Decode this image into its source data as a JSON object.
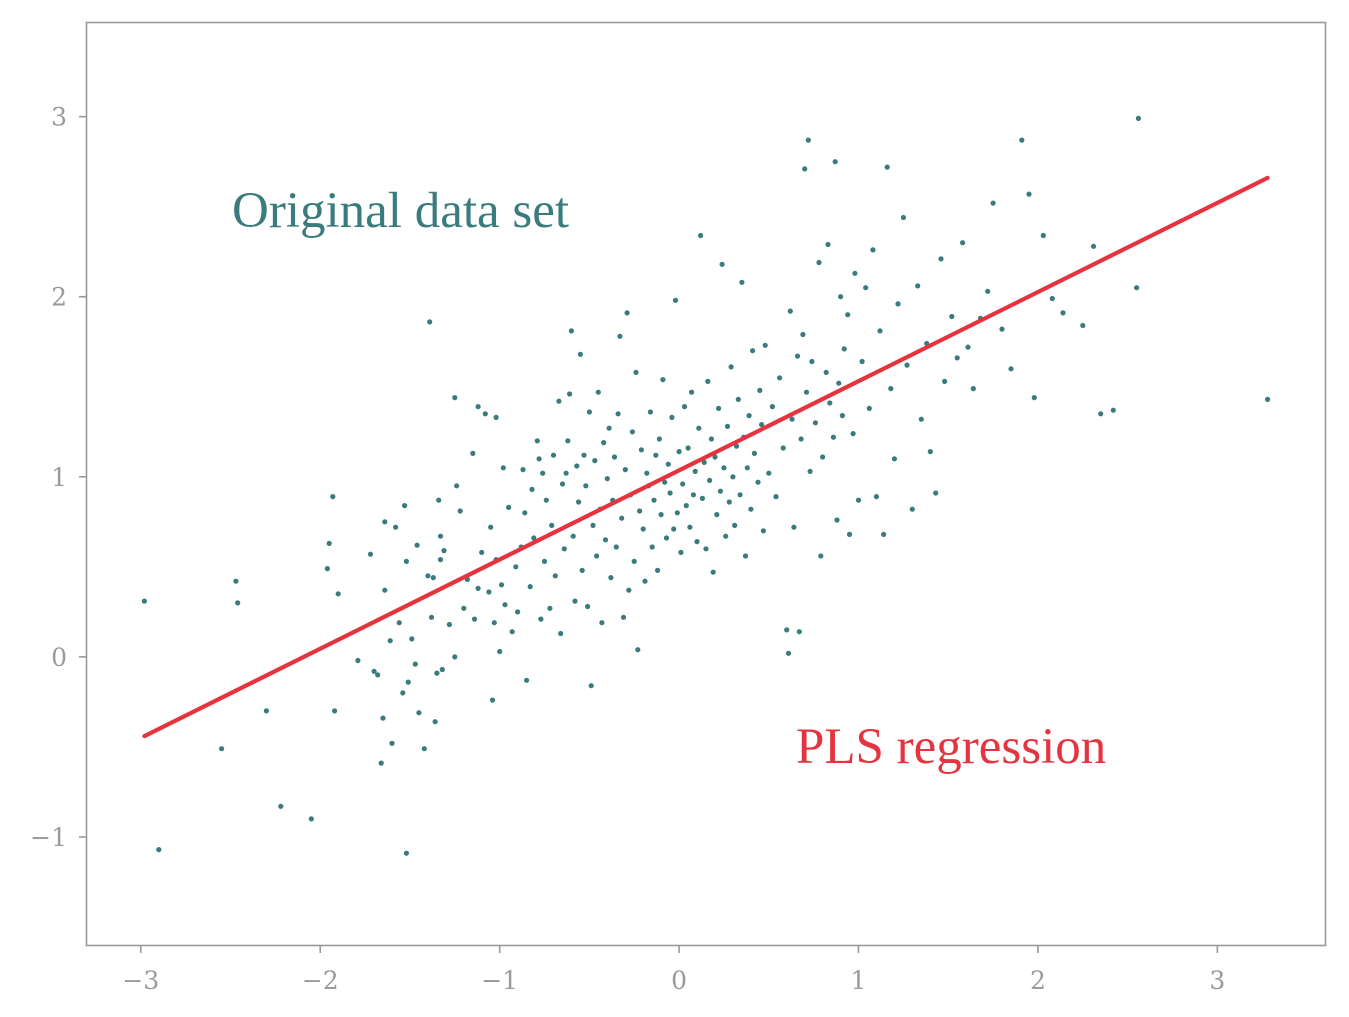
{
  "chart_data": {
    "type": "scatter",
    "title": "",
    "xlabel": "",
    "ylabel": "",
    "xlim": [
      -3.3,
      3.6
    ],
    "ylim": [
      -1.6,
      3.52
    ],
    "x_ticks": [
      -3,
      -2,
      -1,
      0,
      1,
      2,
      3
    ],
    "x_tick_labels": [
      "−3",
      "−2",
      "−1",
      "0",
      "1",
      "2",
      "3"
    ],
    "y_ticks": [
      -1,
      0,
      1,
      2,
      3
    ],
    "y_tick_labels": [
      "−1",
      "0",
      "1",
      "2",
      "3"
    ],
    "grid": false,
    "series": [
      {
        "kind": "scatter",
        "color": "#3a7b7d",
        "points": [
          [
            -2.98,
            0.31
          ],
          [
            -2.9,
            -1.07
          ],
          [
            -2.55,
            -0.51
          ],
          [
            -2.47,
            0.42
          ],
          [
            -2.46,
            0.3
          ],
          [
            -2.3,
            -0.3
          ],
          [
            -2.22,
            -0.83
          ],
          [
            -2.05,
            -0.9
          ],
          [
            -1.96,
            0.49
          ],
          [
            -1.95,
            0.63
          ],
          [
            -1.93,
            0.89
          ],
          [
            -1.92,
            -0.3
          ],
          [
            -1.9,
            0.35
          ],
          [
            -1.79,
            -0.02
          ],
          [
            -1.72,
            0.57
          ],
          [
            -1.7,
            -0.08
          ],
          [
            -1.68,
            -0.1
          ],
          [
            -1.66,
            -0.59
          ],
          [
            -1.65,
            -0.34
          ],
          [
            -1.64,
            0.75
          ],
          [
            -1.64,
            0.37
          ],
          [
            -1.61,
            0.09
          ],
          [
            -1.6,
            -0.48
          ],
          [
            -1.58,
            0.72
          ],
          [
            -1.56,
            0.19
          ],
          [
            -1.54,
            -0.2
          ],
          [
            -1.53,
            0.84
          ],
          [
            -1.52,
            -1.09
          ],
          [
            -1.52,
            0.53
          ],
          [
            -1.51,
            -0.14
          ],
          [
            -1.49,
            0.1
          ],
          [
            -1.47,
            -0.04
          ],
          [
            -1.46,
            0.62
          ],
          [
            -1.45,
            -0.31
          ],
          [
            -1.42,
            -0.51
          ],
          [
            -1.4,
            0.45
          ],
          [
            -1.39,
            1.86
          ],
          [
            -1.38,
            0.22
          ],
          [
            -1.37,
            0.44
          ],
          [
            -1.36,
            -0.36
          ],
          [
            -1.35,
            -0.09
          ],
          [
            -1.34,
            0.87
          ],
          [
            -1.33,
            0.67
          ],
          [
            -1.33,
            0.54
          ],
          [
            -1.32,
            -0.07
          ],
          [
            -1.31,
            0.59
          ],
          [
            -1.28,
            0.18
          ],
          [
            -1.25,
            0.0
          ],
          [
            -1.25,
            1.44
          ],
          [
            -1.24,
            0.95
          ],
          [
            -1.22,
            0.81
          ],
          [
            -1.2,
            0.27
          ],
          [
            -1.18,
            0.43
          ],
          [
            -1.15,
            1.13
          ],
          [
            -1.14,
            0.21
          ],
          [
            -1.12,
            1.39
          ],
          [
            -1.12,
            0.38
          ],
          [
            -1.1,
            0.58
          ],
          [
            -1.08,
            1.35
          ],
          [
            -1.06,
            0.36
          ],
          [
            -1.05,
            0.72
          ],
          [
            -1.04,
            -0.24
          ],
          [
            -1.03,
            0.19
          ],
          [
            -1.02,
            1.33
          ],
          [
            -1.02,
            0.54
          ],
          [
            -1.0,
            0.03
          ],
          [
            -0.99,
            0.4
          ],
          [
            -0.98,
            1.05
          ],
          [
            -0.97,
            0.29
          ],
          [
            -0.95,
            0.83
          ],
          [
            -0.93,
            0.14
          ],
          [
            -0.91,
            0.5
          ],
          [
            -0.9,
            0.25
          ],
          [
            -0.88,
            0.61
          ],
          [
            -0.87,
            1.04
          ],
          [
            -0.86,
            0.8
          ],
          [
            -0.85,
            -0.13
          ],
          [
            -0.83,
            0.39
          ],
          [
            -0.82,
            0.93
          ],
          [
            -0.81,
            0.66
          ],
          [
            -0.79,
            1.2
          ],
          [
            -0.78,
            1.1
          ],
          [
            -0.77,
            0.21
          ],
          [
            -0.76,
            1.02
          ],
          [
            -0.75,
            0.53
          ],
          [
            -0.74,
            0.87
          ],
          [
            -0.72,
            0.27
          ],
          [
            -0.71,
            0.73
          ],
          [
            -0.7,
            1.12
          ],
          [
            -0.69,
            0.45
          ],
          [
            -0.67,
            1.42
          ],
          [
            -0.66,
            0.13
          ],
          [
            -0.65,
            0.96
          ],
          [
            -0.64,
            0.6
          ],
          [
            -0.63,
            1.02
          ],
          [
            -0.62,
            1.2
          ],
          [
            -0.61,
            1.46
          ],
          [
            -0.6,
            1.81
          ],
          [
            -0.59,
            0.67
          ],
          [
            -0.58,
            0.31
          ],
          [
            -0.57,
            1.06
          ],
          [
            -0.56,
            0.86
          ],
          [
            -0.55,
            1.68
          ],
          [
            -0.54,
            0.48
          ],
          [
            -0.53,
            1.12
          ],
          [
            -0.52,
            0.95
          ],
          [
            -0.51,
            0.28
          ],
          [
            -0.5,
            1.36
          ],
          [
            -0.49,
            -0.16
          ],
          [
            -0.48,
            0.73
          ],
          [
            -0.47,
            1.09
          ],
          [
            -0.46,
            0.56
          ],
          [
            -0.45,
            1.47
          ],
          [
            -0.44,
            0.82
          ],
          [
            -0.43,
            0.19
          ],
          [
            -0.42,
            1.19
          ],
          [
            -0.41,
            0.65
          ],
          [
            -0.4,
            0.99
          ],
          [
            -0.39,
            1.27
          ],
          [
            -0.38,
            0.44
          ],
          [
            -0.37,
            0.87
          ],
          [
            -0.36,
            1.11
          ],
          [
            -0.35,
            0.61
          ],
          [
            -0.34,
            1.35
          ],
          [
            -0.33,
            1.78
          ],
          [
            -0.32,
            0.77
          ],
          [
            -0.31,
            0.22
          ],
          [
            -0.3,
            1.04
          ],
          [
            -0.29,
            1.91
          ],
          [
            -0.28,
            0.37
          ],
          [
            -0.27,
            0.9
          ],
          [
            -0.26,
            1.25
          ],
          [
            -0.25,
            0.53
          ],
          [
            -0.24,
            1.58
          ],
          [
            -0.23,
            0.04
          ],
          [
            -0.22,
            0.81
          ],
          [
            -0.21,
            1.15
          ],
          [
            -0.2,
            0.71
          ],
          [
            -0.19,
            0.42
          ],
          [
            -0.18,
            1.02
          ],
          [
            -0.17,
            0.95
          ],
          [
            -0.16,
            1.36
          ],
          [
            -0.15,
            0.61
          ],
          [
            -0.14,
            0.87
          ],
          [
            -0.13,
            1.12
          ],
          [
            -0.12,
            0.48
          ],
          [
            -0.11,
            1.21
          ],
          [
            -0.1,
            0.79
          ],
          [
            -0.09,
            1.54
          ],
          [
            -0.08,
            0.97
          ],
          [
            -0.07,
            0.66
          ],
          [
            -0.06,
            1.07
          ],
          [
            -0.05,
            0.91
          ],
          [
            -0.04,
            1.33
          ],
          [
            -0.03,
            0.71
          ],
          [
            -0.02,
            1.98
          ],
          [
            -0.01,
            0.8
          ],
          [
            0.0,
            1.14
          ],
          [
            0.01,
            0.58
          ],
          [
            0.02,
            0.96
          ],
          [
            0.03,
            1.39
          ],
          [
            0.04,
            0.84
          ],
          [
            0.05,
            1.16
          ],
          [
            0.06,
            0.72
          ],
          [
            0.07,
            1.47
          ],
          [
            0.08,
            0.9
          ],
          [
            0.09,
            1.03
          ],
          [
            0.1,
            0.64
          ],
          [
            0.11,
            1.27
          ],
          [
            0.12,
            2.34
          ],
          [
            0.13,
            0.88
          ],
          [
            0.14,
            1.08
          ],
          [
            0.15,
            0.6
          ],
          [
            0.16,
            1.53
          ],
          [
            0.17,
            0.98
          ],
          [
            0.18,
            1.21
          ],
          [
            0.19,
            0.47
          ],
          [
            0.2,
            1.11
          ],
          [
            0.21,
            0.79
          ],
          [
            0.22,
            1.38
          ],
          [
            0.23,
            0.92
          ],
          [
            0.24,
            2.18
          ],
          [
            0.25,
            1.05
          ],
          [
            0.26,
            0.67
          ],
          [
            0.27,
            1.28
          ],
          [
            0.28,
            0.86
          ],
          [
            0.29,
            1.61
          ],
          [
            0.3,
            1.0
          ],
          [
            0.31,
            0.73
          ],
          [
            0.32,
            1.17
          ],
          [
            0.33,
            1.43
          ],
          [
            0.34,
            0.9
          ],
          [
            0.35,
            2.08
          ],
          [
            0.36,
            1.22
          ],
          [
            0.37,
            0.56
          ],
          [
            0.38,
            1.05
          ],
          [
            0.39,
            1.34
          ],
          [
            0.4,
            0.82
          ],
          [
            0.41,
            1.7
          ],
          [
            0.42,
            1.13
          ],
          [
            0.44,
            0.97
          ],
          [
            0.45,
            1.48
          ],
          [
            0.46,
            1.29
          ],
          [
            0.47,
            0.7
          ],
          [
            0.48,
            1.73
          ],
          [
            0.5,
            1.02
          ],
          [
            0.52,
            1.39
          ],
          [
            0.54,
            0.89
          ],
          [
            0.56,
            1.55
          ],
          [
            0.58,
            1.16
          ],
          [
            0.6,
            0.15
          ],
          [
            0.61,
            0.02
          ],
          [
            0.62,
            1.92
          ],
          [
            0.63,
            1.32
          ],
          [
            0.64,
            0.72
          ],
          [
            0.66,
            1.67
          ],
          [
            0.67,
            0.14
          ],
          [
            0.68,
            1.21
          ],
          [
            0.69,
            1.79
          ],
          [
            0.7,
            2.71
          ],
          [
            0.71,
            1.47
          ],
          [
            0.72,
            2.87
          ],
          [
            0.73,
            1.03
          ],
          [
            0.74,
            1.64
          ],
          [
            0.76,
            1.3
          ],
          [
            0.78,
            2.19
          ],
          [
            0.79,
            0.56
          ],
          [
            0.8,
            1.11
          ],
          [
            0.82,
            1.58
          ],
          [
            0.83,
            2.29
          ],
          [
            0.84,
            1.41
          ],
          [
            0.86,
            1.22
          ],
          [
            0.87,
            2.75
          ],
          [
            0.88,
            0.76
          ],
          [
            0.89,
            1.52
          ],
          [
            0.9,
            2.0
          ],
          [
            0.91,
            1.34
          ],
          [
            0.92,
            1.71
          ],
          [
            0.94,
            1.9
          ],
          [
            0.95,
            0.68
          ],
          [
            0.97,
            1.24
          ],
          [
            0.98,
            2.13
          ],
          [
            1.0,
            0.87
          ],
          [
            1.02,
            1.64
          ],
          [
            1.04,
            2.05
          ],
          [
            1.06,
            1.38
          ],
          [
            1.08,
            2.26
          ],
          [
            1.1,
            0.89
          ],
          [
            1.12,
            1.81
          ],
          [
            1.14,
            0.68
          ],
          [
            1.16,
            2.72
          ],
          [
            1.18,
            1.49
          ],
          [
            1.2,
            1.1
          ],
          [
            1.22,
            1.96
          ],
          [
            1.25,
            2.44
          ],
          [
            1.27,
            1.62
          ],
          [
            1.3,
            0.82
          ],
          [
            1.33,
            2.06
          ],
          [
            1.35,
            1.32
          ],
          [
            1.38,
            1.74
          ],
          [
            1.4,
            1.14
          ],
          [
            1.43,
            0.91
          ],
          [
            1.46,
            2.21
          ],
          [
            1.48,
            1.53
          ],
          [
            1.52,
            1.89
          ],
          [
            1.55,
            1.66
          ],
          [
            1.58,
            2.3
          ],
          [
            1.61,
            1.72
          ],
          [
            1.64,
            1.49
          ],
          [
            1.68,
            1.88
          ],
          [
            1.72,
            2.03
          ],
          [
            1.75,
            2.52
          ],
          [
            1.8,
            1.82
          ],
          [
            1.85,
            1.6
          ],
          [
            1.91,
            2.87
          ],
          [
            1.95,
            2.57
          ],
          [
            1.98,
            1.44
          ],
          [
            2.03,
            2.34
          ],
          [
            2.08,
            1.99
          ],
          [
            2.14,
            1.91
          ],
          [
            2.25,
            1.84
          ],
          [
            2.31,
            2.28
          ],
          [
            2.35,
            1.35
          ],
          [
            2.42,
            1.37
          ],
          [
            2.55,
            2.05
          ],
          [
            2.56,
            2.99
          ],
          [
            3.28,
            1.43
          ]
        ]
      },
      {
        "kind": "line",
        "color": "#e5343f",
        "points": [
          [
            -2.98,
            -0.44
          ],
          [
            3.28,
            2.66
          ]
        ]
      }
    ],
    "annotations": [
      {
        "text": "Original data set",
        "color": "#3a7b7d"
      },
      {
        "text": "PLS regression",
        "color": "#e5343f"
      }
    ]
  }
}
